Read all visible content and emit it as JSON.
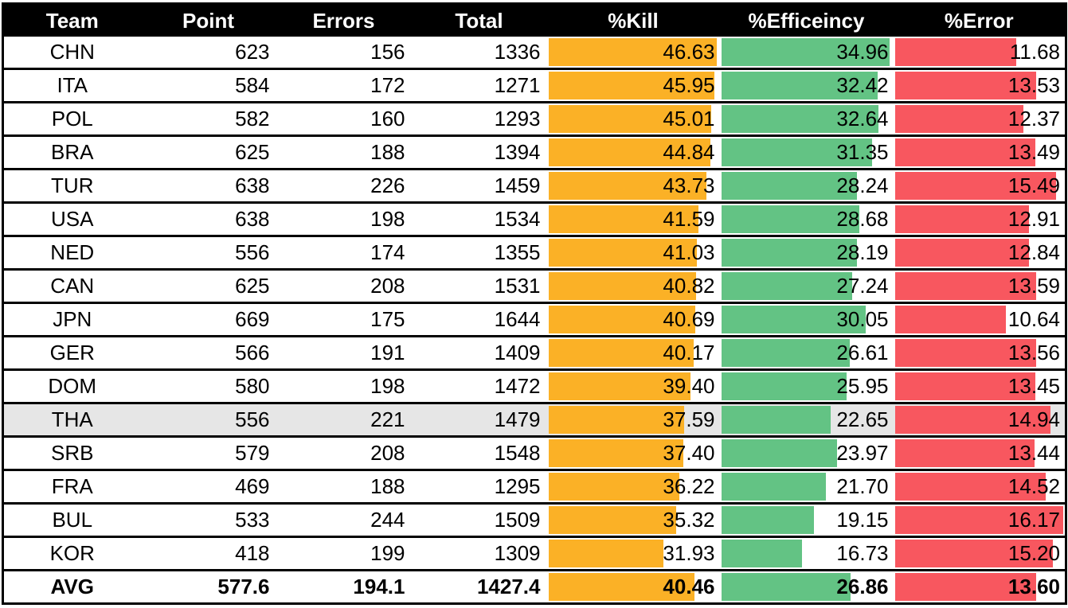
{
  "colors": {
    "kill": "#FBB126",
    "efficiency": "#63C384",
    "error": "#F8575F",
    "highlight_row": "#e6e6e6"
  },
  "chart_data": {
    "type": "table",
    "headers": [
      "Team",
      "Point",
      "Errors",
      "Total",
      "%Kill",
      "%Efficeincy",
      "%Error"
    ],
    "bar_max": {
      "kill": 46.63,
      "efficiency": 34.96,
      "error": 16.17
    },
    "highlighted_team": "THA",
    "rows": [
      {
        "team": "CHN",
        "point": "623",
        "errors": "156",
        "total": "1336",
        "kill": "46.63",
        "efficiency": "34.96",
        "error": "11.68"
      },
      {
        "team": "ITA",
        "point": "584",
        "errors": "172",
        "total": "1271",
        "kill": "45.95",
        "efficiency": "32.42",
        "error": "13.53"
      },
      {
        "team": "POL",
        "point": "582",
        "errors": "160",
        "total": "1293",
        "kill": "45.01",
        "efficiency": "32.64",
        "error": "12.37"
      },
      {
        "team": "BRA",
        "point": "625",
        "errors": "188",
        "total": "1394",
        "kill": "44.84",
        "efficiency": "31.35",
        "error": "13.49"
      },
      {
        "team": "TUR",
        "point": "638",
        "errors": "226",
        "total": "1459",
        "kill": "43.73",
        "efficiency": "28.24",
        "error": "15.49"
      },
      {
        "team": "USA",
        "point": "638",
        "errors": "198",
        "total": "1534",
        "kill": "41.59",
        "efficiency": "28.68",
        "error": "12.91"
      },
      {
        "team": "NED",
        "point": "556",
        "errors": "174",
        "total": "1355",
        "kill": "41.03",
        "efficiency": "28.19",
        "error": "12.84"
      },
      {
        "team": "CAN",
        "point": "625",
        "errors": "208",
        "total": "1531",
        "kill": "40.82",
        "efficiency": "27.24",
        "error": "13.59"
      },
      {
        "team": "JPN",
        "point": "669",
        "errors": "175",
        "total": "1644",
        "kill": "40.69",
        "efficiency": "30.05",
        "error": "10.64"
      },
      {
        "team": "GER",
        "point": "566",
        "errors": "191",
        "total": "1409",
        "kill": "40.17",
        "efficiency": "26.61",
        "error": "13.56"
      },
      {
        "team": "DOM",
        "point": "580",
        "errors": "198",
        "total": "1472",
        "kill": "39.40",
        "efficiency": "25.95",
        "error": "13.45"
      },
      {
        "team": "THA",
        "point": "556",
        "errors": "221",
        "total": "1479",
        "kill": "37.59",
        "efficiency": "22.65",
        "error": "14.94"
      },
      {
        "team": "SRB",
        "point": "579",
        "errors": "208",
        "total": "1548",
        "kill": "37.40",
        "efficiency": "23.97",
        "error": "13.44"
      },
      {
        "team": "FRA",
        "point": "469",
        "errors": "188",
        "total": "1295",
        "kill": "36.22",
        "efficiency": "21.70",
        "error": "14.52"
      },
      {
        "team": "BUL",
        "point": "533",
        "errors": "244",
        "total": "1509",
        "kill": "35.32",
        "efficiency": "19.15",
        "error": "16.17"
      },
      {
        "team": "KOR",
        "point": "418",
        "errors": "199",
        "total": "1309",
        "kill": "31.93",
        "efficiency": "16.73",
        "error": "15.20"
      }
    ],
    "average": {
      "team": "AVG",
      "point": "577.6",
      "errors": "194.1",
      "total": "1427.4",
      "kill": "40.46",
      "efficiency": "26.86",
      "error": "13.60"
    }
  }
}
